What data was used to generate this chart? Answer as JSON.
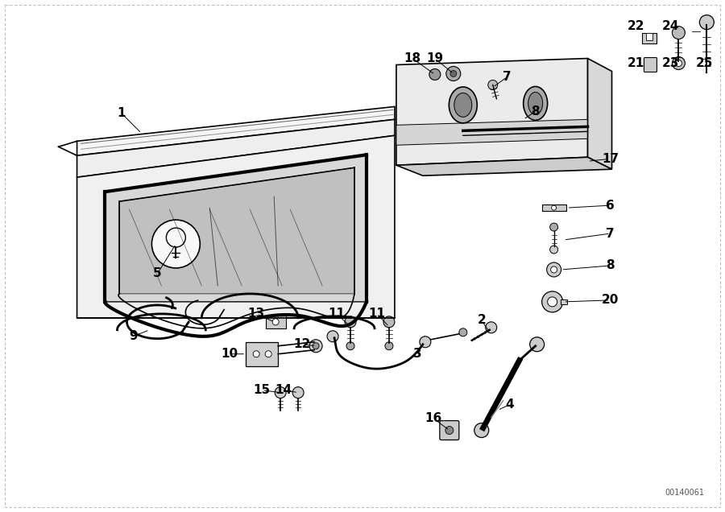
{
  "bg_color": "#ffffff",
  "line_color": "#000000",
  "diagram_id": "00140061",
  "fig_width": 9.0,
  "fig_height": 6.36,
  "dpi": 100
}
